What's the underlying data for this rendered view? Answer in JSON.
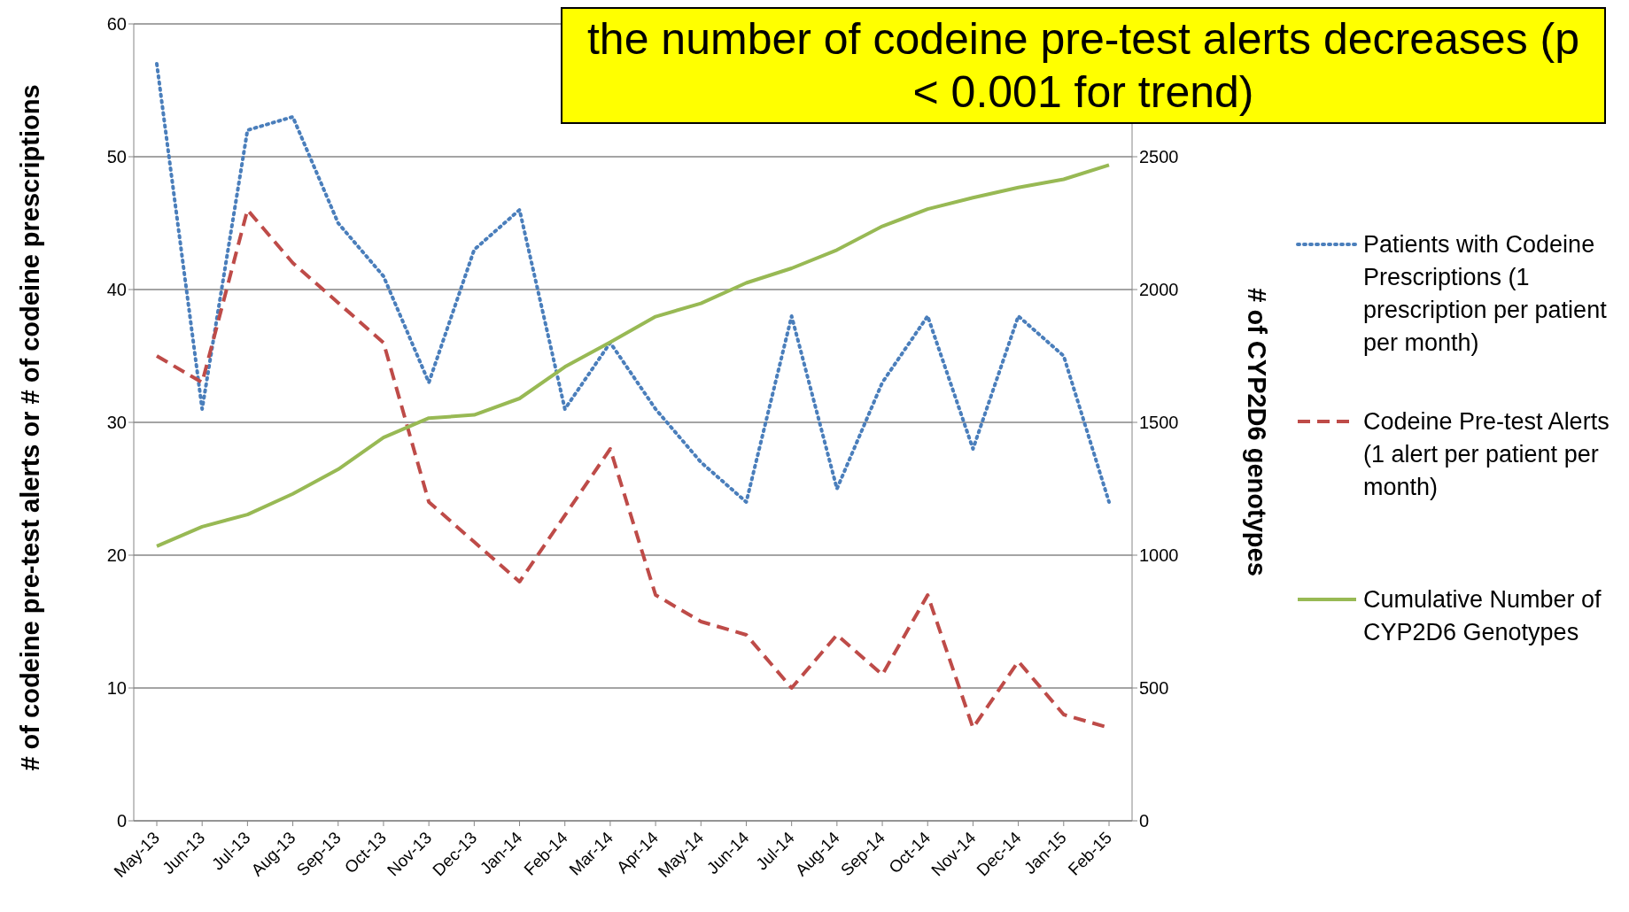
{
  "chart_data": {
    "type": "line",
    "ylabel": "# of codeine pre-test alerts or # of codeine prescriptions",
    "y2label": "# of CYP2D6 genotypes",
    "annotations": [
      "the number of codeine pre-test alerts decreases (p < 0.001 for trend)"
    ],
    "categories": [
      "May-13",
      "Jun-13",
      "Jul-13",
      "Aug-13",
      "Sep-13",
      "Oct-13",
      "Nov-13",
      "Dec-13",
      "Jan-14",
      "Feb-14",
      "Mar-14",
      "Apr-14",
      "May-14",
      "Jun-14",
      "Jul-14",
      "Aug-14",
      "Sep-14",
      "Oct-14",
      "Nov-14",
      "Dec-14",
      "Jan-15",
      "Feb-15"
    ],
    "series": [
      {
        "name": "Patients with Codeine Prescriptions (1 prescription per patient per month)",
        "color": "#4a7ebb",
        "line_style": "dotted",
        "values": [
          57,
          31,
          52,
          53,
          45,
          41,
          33,
          43,
          46,
          31,
          36,
          31,
          27,
          24,
          38,
          25,
          33,
          38,
          28,
          38,
          35,
          24
        ]
      },
      {
        "name": "Codeine Pre-test Alerts (1 alert per patient per month)",
        "color": "#be4b48",
        "line_style": "dashed",
        "values": [
          35,
          33,
          46,
          42,
          39,
          36,
          24,
          21,
          18,
          23,
          28,
          17,
          15,
          14,
          10,
          14,
          11,
          17,
          7,
          12,
          8,
          7
        ]
      },
      {
        "name": "Cumulative Number of CYP2D6 Genotypes",
        "color": "#98b954",
        "line_style": "solid",
        "axis": "y2",
        "values": [
          1034,
          1107,
          1153,
          1231,
          1323,
          1443,
          1516,
          1528,
          1590,
          1709,
          1802,
          1898,
          1948,
          2025,
          2080,
          2149,
          2238,
          2303,
          2346,
          2384,
          2415,
          2469
        ]
      }
    ],
    "ylim": [
      0,
      60
    ],
    "yticks": [
      0,
      10,
      20,
      30,
      40,
      50,
      60
    ],
    "y2lim": [
      0,
      3000
    ],
    "y2ticks": [
      0,
      500,
      1000,
      1500,
      2000,
      2500
    ],
    "grid": "y",
    "legend": "right",
    "marker": "none"
  }
}
